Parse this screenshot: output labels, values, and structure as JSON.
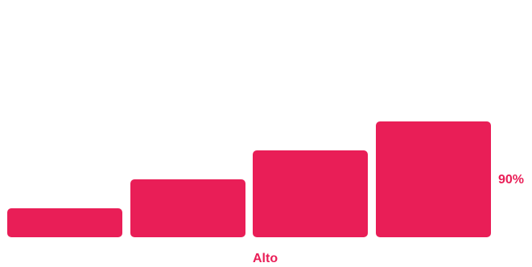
{
  "strength_meter": {
    "level_label": "Alto",
    "percent_label": "90%",
    "percent_value": 90,
    "bars_filled": 4,
    "bars_total": 4,
    "accent_color": "#e91e57"
  }
}
